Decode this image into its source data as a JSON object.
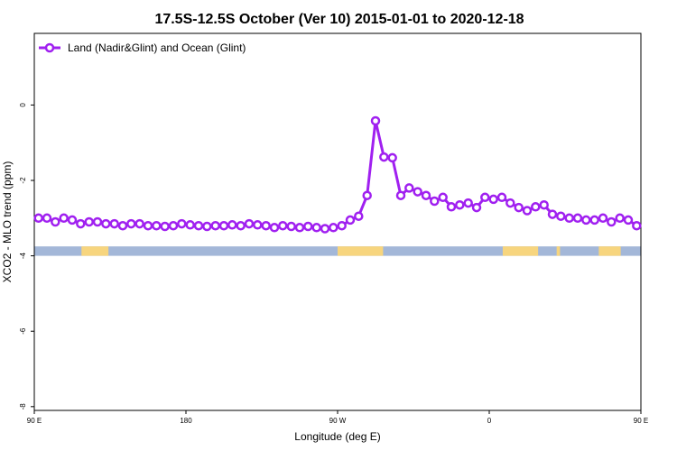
{
  "chart_data": {
    "type": "line",
    "title": "17.5S-12.5S October (Ver 10)   2015-01-01 to 2020-12-18",
    "xlabel": "Longitude (deg E)",
    "ylabel": "XCO2 - MLO trend (ppm)",
    "xlim": [
      90,
      450
    ],
    "ylim": [
      -8.1,
      1.9
    ],
    "x_ticks": [
      {
        "value": 90,
        "label": "90 E"
      },
      {
        "value": 180,
        "label": "180"
      },
      {
        "value": 270,
        "label": "90 W"
      },
      {
        "value": 360,
        "label": "0"
      },
      {
        "value": 450,
        "label": "90 E"
      }
    ],
    "y_ticks": [
      {
        "value": 0,
        "label": "0"
      },
      {
        "value": -2,
        "label": "-2"
      },
      {
        "value": -4,
        "label": "-4"
      },
      {
        "value": -6,
        "label": "-6"
      },
      {
        "value": -8,
        "label": "-8"
      }
    ],
    "grid": false,
    "legend_position": "top-left",
    "series": [
      {
        "name": "Land (Nadir&Glint) and Ocean (Glint)",
        "color": "#a020f0",
        "marker": "open-circle",
        "x": [
          92.5,
          97.5,
          102.5,
          107.5,
          112.5,
          117.5,
          122.5,
          127.5,
          132.5,
          137.5,
          142.5,
          147.5,
          152.5,
          157.5,
          162.5,
          167.5,
          172.5,
          177.5,
          182.5,
          187.5,
          192.5,
          197.5,
          202.5,
          207.5,
          212.5,
          217.5,
          222.5,
          227.5,
          232.5,
          237.5,
          242.5,
          247.5,
          252.5,
          257.5,
          262.5,
          267.5,
          272.5,
          277.5,
          282.5,
          287.5,
          292.5,
          297.5,
          302.5,
          307.5,
          312.5,
          317.5,
          322.5,
          327.5,
          332.5,
          337.5,
          342.5,
          347.5,
          352.5,
          357.5,
          362.5,
          367.5,
          372.5,
          377.5,
          382.5,
          387.5,
          392.5,
          397.5,
          402.5,
          407.5,
          412.5,
          417.5,
          422.5,
          427.5,
          432.5,
          437.5,
          442.5,
          447.5
        ],
        "y": [
          -3.0,
          -3.0,
          -3.1,
          -3.0,
          -3.05,
          -3.15,
          -3.1,
          -3.1,
          -3.15,
          -3.15,
          -3.2,
          -3.15,
          -3.15,
          -3.2,
          -3.2,
          -3.22,
          -3.2,
          -3.15,
          -3.18,
          -3.2,
          -3.22,
          -3.2,
          -3.2,
          -3.18,
          -3.2,
          -3.15,
          -3.18,
          -3.2,
          -3.25,
          -3.2,
          -3.22,
          -3.25,
          -3.22,
          -3.25,
          -3.28,
          -3.25,
          -3.2,
          -3.05,
          -2.95,
          -2.4,
          -0.42,
          -1.38,
          -1.4,
          -2.4,
          -2.2,
          -2.3,
          -2.4,
          -2.55,
          -2.45,
          -2.7,
          -2.65,
          -2.6,
          -2.72,
          -2.45,
          -2.5,
          -2.45,
          -2.6,
          -2.72,
          -2.8,
          -2.7,
          -2.65,
          -2.9,
          -2.95,
          -3.0,
          -3.0,
          -3.05,
          -3.05,
          -3.0,
          -3.1,
          -3.0,
          -3.05,
          -3.2
        ]
      }
    ],
    "surface_band": {
      "y_range": [
        -4.0,
        -3.75
      ],
      "ocean_color": "#a3b7d8",
      "land_color": "#f7d57e",
      "land_segments": [
        [
          118,
          134
        ],
        [
          270,
          297
        ],
        [
          368,
          389
        ],
        [
          400,
          402
        ],
        [
          425,
          438
        ]
      ]
    }
  }
}
